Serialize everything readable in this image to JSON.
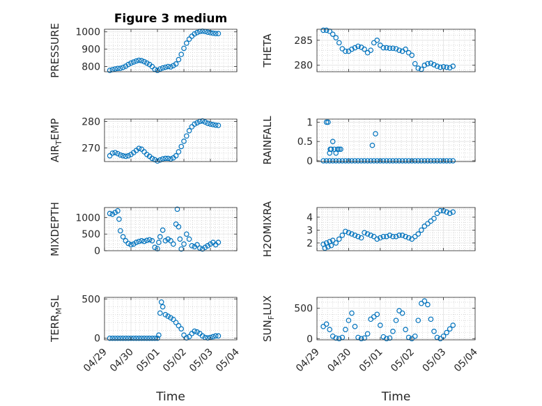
{
  "chart_data": [
    {
      "type": "scatter",
      "title": "Figure 3 medium",
      "ylabel_main": "PRESSURE",
      "ylabel_sub": "",
      "yticks": [
        800,
        900,
        1000
      ],
      "ylim": [
        770,
        1015
      ],
      "xlim": [
        0,
        5
      ],
      "xticks": [
        "04/29",
        "04/30",
        "05/01",
        "05/02",
        "05/03",
        "05/04"
      ],
      "show_xticks": false,
      "x": [
        0.2,
        0.3,
        0.4,
        0.5,
        0.6,
        0.7,
        0.8,
        0.9,
        1.0,
        1.1,
        1.2,
        1.3,
        1.4,
        1.5,
        1.6,
        1.7,
        1.8,
        1.9,
        2.0,
        2.1,
        2.2,
        2.3,
        2.4,
        2.5,
        2.6,
        2.7,
        2.8,
        2.9,
        3.0,
        3.1,
        3.2,
        3.3,
        3.4,
        3.5,
        3.6,
        3.7,
        3.8,
        3.9,
        4.0,
        4.1,
        4.2,
        4.3
      ],
      "y": [
        778,
        782,
        786,
        789,
        790,
        795,
        802,
        812,
        820,
        826,
        832,
        836,
        834,
        828,
        820,
        812,
        800,
        784,
        778,
        786,
        792,
        796,
        800,
        798,
        805,
        815,
        840,
        870,
        905,
        935,
        958,
        975,
        988,
        996,
        1002,
        1004,
        1002,
        998,
        995,
        992,
        990,
        990
      ]
    },
    {
      "type": "scatter",
      "title": "",
      "ylabel_main": "THETA",
      "ylabel_sub": "",
      "yticks": [
        280,
        285
      ],
      "ylim": [
        278.7,
        287.2
      ],
      "xlim": [
        0,
        5
      ],
      "xticks": [
        "04/29",
        "04/30",
        "05/01",
        "05/02",
        "05/03",
        "05/04"
      ],
      "show_xticks": false,
      "x": [
        0.2,
        0.3,
        0.4,
        0.5,
        0.6,
        0.7,
        0.8,
        0.9,
        1.0,
        1.1,
        1.2,
        1.3,
        1.4,
        1.5,
        1.6,
        1.7,
        1.8,
        1.9,
        2.0,
        2.1,
        2.2,
        2.3,
        2.4,
        2.5,
        2.6,
        2.7,
        2.8,
        2.9,
        3.0,
        3.1,
        3.2,
        3.3,
        3.4,
        3.5,
        3.6,
        3.7,
        3.8,
        3.9,
        4.0,
        4.1,
        4.2,
        4.3
      ],
      "y": [
        287.0,
        287.0,
        286.8,
        286.2,
        285.5,
        284.5,
        283.3,
        282.8,
        282.8,
        283.2,
        283.5,
        283.8,
        283.6,
        283.2,
        282.5,
        283.0,
        284.5,
        285.0,
        284.0,
        283.5,
        283.5,
        283.4,
        283.4,
        283.3,
        283.0,
        282.8,
        283.2,
        282.5,
        282.0,
        280.3,
        279.4,
        279.2,
        280.0,
        280.3,
        280.4,
        280.1,
        279.8,
        279.6,
        279.7,
        279.6,
        279.5,
        279.8
      ]
    },
    {
      "type": "scatter",
      "title": "",
      "ylabel_main": "AIR",
      "ylabel_sub": "T",
      "ylabel_tail": "EMP",
      "yticks": [
        270,
        280
      ],
      "ylim": [
        264.8,
        280.9
      ],
      "xlim": [
        0,
        5
      ],
      "xticks": [
        "04/29",
        "04/30",
        "05/01",
        "05/02",
        "05/03",
        "05/04"
      ],
      "show_xticks": false,
      "x": [
        0.2,
        0.3,
        0.4,
        0.5,
        0.6,
        0.7,
        0.8,
        0.9,
        1.0,
        1.1,
        1.2,
        1.3,
        1.4,
        1.5,
        1.6,
        1.7,
        1.8,
        1.9,
        2.0,
        2.1,
        2.2,
        2.3,
        2.4,
        2.5,
        2.6,
        2.7,
        2.8,
        2.9,
        3.0,
        3.1,
        3.2,
        3.3,
        3.4,
        3.5,
        3.6,
        3.7,
        3.8,
        3.9,
        4.0,
        4.1,
        4.2,
        4.3
      ],
      "y": [
        267.0,
        268.0,
        268.2,
        267.8,
        267.3,
        267.0,
        266.8,
        267.0,
        267.5,
        268.2,
        269.0,
        269.8,
        269.5,
        268.5,
        267.5,
        266.8,
        266.0,
        265.5,
        265.0,
        265.4,
        265.8,
        266.0,
        266.0,
        265.8,
        266.2,
        267.0,
        268.5,
        270.5,
        272.5,
        274.5,
        276.5,
        278.0,
        279.0,
        279.5,
        280.0,
        280.2,
        279.8,
        279.3,
        279.0,
        278.8,
        278.6,
        278.5
      ]
    },
    {
      "type": "scatter",
      "title": "",
      "ylabel_main": "RAINFALL",
      "ylabel_sub": "",
      "yticks": [
        0,
        0.5,
        1
      ],
      "ytick_labels": [
        "0",
        "0.5",
        "1"
      ],
      "ylim": [
        -0.02,
        1.08
      ],
      "xlim": [
        0,
        5
      ],
      "xticks": [
        "04/29",
        "04/30",
        "05/01",
        "05/02",
        "05/03",
        "05/04"
      ],
      "show_xticks": false,
      "x": [
        0.3,
        0.35,
        0.4,
        0.42,
        0.45,
        0.5,
        0.55,
        0.6,
        0.65,
        0.7,
        0.75,
        1.75,
        1.85,
        0.2,
        0.3,
        0.4,
        0.5,
        0.6,
        0.7,
        0.8,
        0.9,
        1.0,
        1.1,
        1.2,
        1.3,
        1.4,
        1.5,
        1.6,
        1.7,
        1.8,
        1.9,
        2.0,
        2.1,
        2.2,
        2.3,
        2.4,
        2.5,
        2.6,
        2.7,
        2.8,
        2.9,
        3.0,
        3.1,
        3.2,
        3.3,
        3.4,
        3.5,
        3.6,
        3.7,
        3.8,
        3.9,
        4.0,
        4.1,
        4.2,
        4.3
      ],
      "y": [
        1.0,
        1.0,
        0.2,
        0.3,
        0.3,
        0.5,
        0.3,
        0.2,
        0.3,
        0.3,
        0.3,
        0.4,
        0.7,
        0,
        0,
        0,
        0,
        0,
        0,
        0,
        0,
        0,
        0,
        0,
        0,
        0,
        0,
        0,
        0,
        0,
        0,
        0,
        0,
        0,
        0,
        0,
        0,
        0,
        0,
        0,
        0,
        0,
        0,
        0,
        0,
        0,
        0,
        0,
        0,
        0,
        0,
        0,
        0,
        0,
        0
      ]
    },
    {
      "type": "scatter",
      "title": "",
      "ylabel_main": "MIXDEPTH",
      "ylabel_sub": "",
      "yticks": [
        0,
        500,
        1000
      ],
      "ylim": [
        0,
        1300
      ],
      "xlim": [
        0,
        5
      ],
      "xticks": [
        "04/29",
        "04/30",
        "05/01",
        "05/02",
        "05/03",
        "05/04"
      ],
      "show_xticks": false,
      "x": [
        0.2,
        0.3,
        0.4,
        0.5,
        0.55,
        0.6,
        0.7,
        0.8,
        0.9,
        1.0,
        1.1,
        1.2,
        1.3,
        1.4,
        1.5,
        1.6,
        1.7,
        1.8,
        1.9,
        2.0,
        2.05,
        2.1,
        2.2,
        2.3,
        2.4,
        2.5,
        2.6,
        2.7,
        2.75,
        2.8,
        2.85,
        2.9,
        3.0,
        3.1,
        3.2,
        3.3,
        3.4,
        3.5,
        3.6,
        3.7,
        3.8,
        3.9,
        4.0,
        4.1,
        4.2,
        4.3
      ],
      "y": [
        1120,
        1100,
        1150,
        1200,
        950,
        600,
        420,
        300,
        220,
        180,
        200,
        250,
        280,
        300,
        280,
        310,
        330,
        300,
        100,
        60,
        250,
        420,
        620,
        300,
        350,
        300,
        200,
        800,
        1250,
        720,
        350,
        50,
        200,
        500,
        350,
        150,
        120,
        180,
        80,
        50,
        100,
        150,
        200,
        250,
        180,
        250
      ]
    },
    {
      "type": "scatter",
      "title": "",
      "ylabel_main": "H2OMIXRA",
      "ylabel_sub": "",
      "yticks": [
        2,
        3,
        4
      ],
      "ylim": [
        1.4,
        4.75
      ],
      "xlim": [
        0,
        5
      ],
      "xticks": [
        "04/29",
        "04/30",
        "05/01",
        "05/02",
        "05/03",
        "05/04"
      ],
      "show_xticks": false,
      "x": [
        0.2,
        0.25,
        0.3,
        0.35,
        0.4,
        0.45,
        0.5,
        0.6,
        0.7,
        0.8,
        0.9,
        1.0,
        1.1,
        1.2,
        1.3,
        1.4,
        1.5,
        1.6,
        1.7,
        1.8,
        1.9,
        2.0,
        2.1,
        2.2,
        2.3,
        2.4,
        2.5,
        2.6,
        2.7,
        2.8,
        2.9,
        3.0,
        3.1,
        3.2,
        3.3,
        3.4,
        3.5,
        3.6,
        3.7,
        3.8,
        3.9,
        4.0,
        4.1,
        4.2,
        4.3
      ],
      "y": [
        1.9,
        1.6,
        2.0,
        1.7,
        2.1,
        1.8,
        2.2,
        2.0,
        2.3,
        2.6,
        2.9,
        2.8,
        2.7,
        2.6,
        2.5,
        2.4,
        2.8,
        2.7,
        2.6,
        2.5,
        2.3,
        2.4,
        2.5,
        2.5,
        2.6,
        2.5,
        2.5,
        2.6,
        2.6,
        2.5,
        2.4,
        2.3,
        2.5,
        2.7,
        3.0,
        3.3,
        3.5,
        3.7,
        3.9,
        4.3,
        4.5,
        4.5,
        4.4,
        4.3,
        4.4
      ]
    },
    {
      "type": "scatter",
      "title": "",
      "ylabel_main": "TERR",
      "ylabel_sub": "M",
      "ylabel_tail": "SL",
      "yticks": [
        0,
        500
      ],
      "ylim": [
        -20,
        520
      ],
      "xlim": [
        0,
        5
      ],
      "xticks": [
        "04/29",
        "04/30",
        "05/01",
        "05/02",
        "05/03",
        "05/04"
      ],
      "show_xticks": true,
      "x": [
        0.2,
        0.3,
        0.4,
        0.5,
        0.6,
        0.7,
        0.8,
        0.9,
        1.0,
        1.1,
        1.2,
        1.3,
        1.4,
        1.5,
        1.6,
        1.7,
        1.8,
        1.9,
        2.0,
        2.05,
        2.1,
        2.15,
        2.2,
        2.3,
        2.4,
        2.5,
        2.6,
        2.7,
        2.8,
        2.9,
        3.0,
        3.1,
        3.2,
        3.3,
        3.4,
        3.5,
        3.6,
        3.7,
        3.8,
        3.9,
        4.0,
        4.1,
        4.2,
        4.3
      ],
      "y": [
        0,
        0,
        0,
        0,
        0,
        0,
        0,
        0,
        0,
        0,
        0,
        0,
        0,
        0,
        0,
        0,
        0,
        0,
        0,
        40,
        320,
        460,
        400,
        300,
        280,
        260,
        240,
        200,
        160,
        120,
        40,
        5,
        20,
        60,
        90,
        80,
        60,
        30,
        10,
        5,
        10,
        20,
        30,
        30
      ]
    },
    {
      "type": "scatter",
      "title": "",
      "ylabel_main": "SUN",
      "ylabel_sub": "F",
      "ylabel_tail": "LUX",
      "yticks": [
        0,
        500
      ],
      "ylim": [
        -20,
        680
      ],
      "xlim": [
        0,
        5
      ],
      "xticks": [
        "04/29",
        "04/30",
        "05/01",
        "05/02",
        "05/03",
        "05/04"
      ],
      "show_xticks": true,
      "x": [
        0.2,
        0.3,
        0.4,
        0.5,
        0.6,
        0.7,
        0.8,
        0.9,
        1.0,
        1.1,
        1.2,
        1.3,
        1.4,
        1.5,
        1.6,
        1.7,
        1.8,
        1.9,
        2.0,
        2.1,
        2.2,
        2.3,
        2.4,
        2.5,
        2.6,
        2.7,
        2.8,
        2.9,
        3.0,
        3.1,
        3.2,
        3.3,
        3.4,
        3.5,
        3.6,
        3.7,
        3.8,
        3.9,
        4.0,
        4.1,
        4.2,
        4.3
      ],
      "y": [
        200,
        240,
        150,
        40,
        10,
        0,
        20,
        150,
        300,
        420,
        200,
        20,
        0,
        10,
        80,
        320,
        360,
        400,
        220,
        30,
        0,
        10,
        120,
        300,
        460,
        420,
        150,
        20,
        0,
        40,
        300,
        580,
        620,
        560,
        320,
        120,
        20,
        0,
        40,
        100,
        160,
        220
      ]
    }
  ],
  "colors": {
    "marker": "#0072BD",
    "axis": "#262626",
    "grid": "#c8c8c8"
  },
  "xlabel": "Time"
}
